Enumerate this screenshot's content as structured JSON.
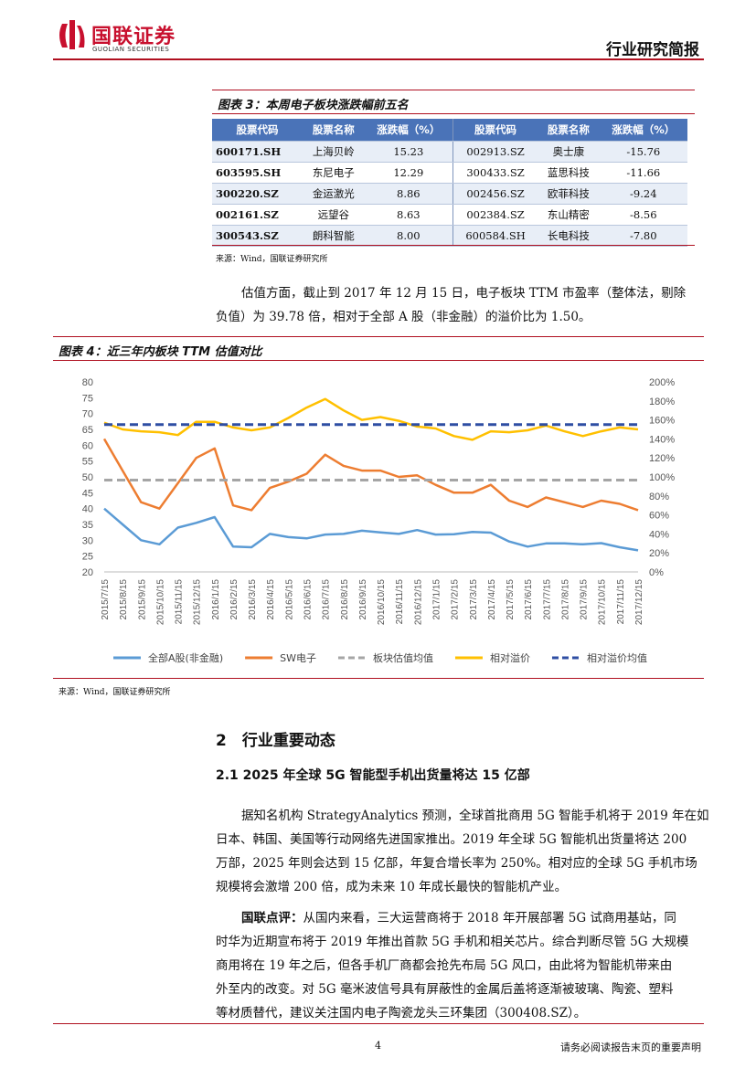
{
  "header": {
    "logo_cn": "国联证券",
    "logo_en": "GUOLIAN SECURITIES",
    "report_type": "行业研究简报"
  },
  "fig3": {
    "title": "图表 3：本周电子板块涨跌幅前五名",
    "headers": [
      "股票代码",
      "股票名称",
      "涨跌幅（%）",
      "股票代码",
      "股票名称",
      "涨跌幅（%）"
    ],
    "rows": [
      [
        "600171.SH",
        "上海贝岭",
        "15.23",
        "002913.SZ",
        "奥士康",
        "-15.76"
      ],
      [
        "603595.SH",
        "东尼电子",
        "12.29",
        "300433.SZ",
        "蓝思科技",
        "-11.66"
      ],
      [
        "300220.SZ",
        "金运激光",
        "8.86",
        "002456.SZ",
        "欧菲科技",
        "-9.24"
      ],
      [
        "002161.SZ",
        "远望谷",
        "8.63",
        "002384.SZ",
        "东山精密",
        "-8.56"
      ],
      [
        "300543.SZ",
        "朗科智能",
        "8.00",
        "600584.SH",
        "长电科技",
        "-7.80"
      ]
    ],
    "source": "来源：Wind，国联证券研究所"
  },
  "valuation_text": {
    "line1": "估值方面，截止到 2017 年 12 月 15 日，电子板块 TTM 市盈率（整体法，剔除",
    "line2": "负值）为 39.78 倍，相对于全部 A 股（非金融）的溢价比为 1.50。"
  },
  "fig4": {
    "title": "图表 4：近三年内板块 TTM 估值对比",
    "source": "来源：Wind，国联证券研究所"
  },
  "chart_data": {
    "type": "line",
    "x": [
      "2015/7/15",
      "2015/8/15",
      "2015/9/15",
      "2015/10/15",
      "2015/11/15",
      "2015/12/15",
      "2016/1/15",
      "2016/2/15",
      "2016/3/15",
      "2016/4/15",
      "2016/5/15",
      "2016/6/15",
      "2016/7/15",
      "2016/8/15",
      "2016/9/15",
      "2016/10/15",
      "2016/11/15",
      "2016/12/15",
      "2017/1/15",
      "2017/2/15",
      "2017/3/15",
      "2017/4/15",
      "2017/5/15",
      "2017/6/15",
      "2017/7/15",
      "2017/8/15",
      "2017/9/15",
      "2017/10/15",
      "2017/11/15",
      "2017/12/15"
    ],
    "left_axis": {
      "min": 20,
      "max": 80,
      "ticks": [
        "80",
        "75",
        "70",
        "65",
        "60",
        "55",
        "50",
        "45",
        "40",
        "35",
        "30",
        "25",
        "20"
      ]
    },
    "right_axis": {
      "min": 0,
      "max": 200,
      "ticks": [
        "200%",
        "180%",
        "160%",
        "140%",
        "120%",
        "100%",
        "80%",
        "60%",
        "40%",
        "20%",
        "0%"
      ]
    },
    "series": [
      {
        "name": "全部A股(非金融)",
        "axis": "left",
        "color": "#5b9bd5",
        "style": "solid",
        "values": [
          40,
          35,
          30,
          28.7,
          34,
          35.5,
          37.3,
          28,
          27.8,
          32,
          31,
          30.6,
          31.8,
          32,
          33,
          32.5,
          32,
          33.2,
          31.8,
          31.9,
          32.6,
          32.4,
          29.6,
          28,
          29,
          29,
          28.7,
          29.1,
          27.8,
          26.8
        ]
      },
      {
        "name": "SW电子",
        "axis": "left",
        "color": "#ed7d31",
        "style": "solid",
        "values": [
          62,
          52,
          42,
          40,
          48,
          56,
          59,
          41,
          39.5,
          46.5,
          48.5,
          51,
          57,
          53.5,
          52,
          52,
          50,
          50.5,
          47.5,
          45,
          45,
          47.5,
          42.5,
          40.5,
          43.5,
          42,
          40.5,
          42.5,
          41.5,
          39.5
        ]
      },
      {
        "name": "板块估值均值",
        "axis": "left",
        "color": "#a5a5a5",
        "style": "dashed",
        "values": [
          49,
          49,
          49,
          49,
          49,
          49,
          49,
          49,
          49,
          49,
          49,
          49,
          49,
          49,
          49,
          49,
          49,
          49,
          49,
          49,
          49,
          49,
          49,
          49,
          49,
          49,
          49,
          49,
          49,
          49
        ]
      },
      {
        "name": "相对溢价",
        "axis": "right",
        "color": "#ffc000",
        "style": "solid",
        "values": [
          157,
          150,
          148,
          147,
          144,
          158,
          158,
          152,
          149,
          152,
          162,
          173,
          182,
          170,
          160,
          163,
          159,
          153,
          151,
          143,
          139,
          148,
          147,
          149,
          154,
          148,
          143,
          148,
          152,
          150
        ]
      },
      {
        "name": "相对溢价均值",
        "axis": "right",
        "color": "#2f4ea3",
        "style": "dashed",
        "values": [
          155,
          155,
          155,
          155,
          155,
          155,
          155,
          155,
          155,
          155,
          155,
          155,
          155,
          155,
          155,
          155,
          155,
          155,
          155,
          155,
          155,
          155,
          155,
          155,
          155,
          155,
          155,
          155,
          155,
          155
        ]
      }
    ],
    "legend_position": "bottom",
    "grid": false
  },
  "section2": {
    "heading": "2　行业重要动态",
    "sub_heading": "2.1  2025 年全球 5G 智能型手机出货量将达 15 亿部",
    "para1": [
      "据知名机构 StrategyAnalytics 预测，全球首批商用 5G 智能手机将于 2019 年在如",
      "日本、韩国、美国等行动网络先进国家推出。2019 年全球 5G 智能机出货量将达 200",
      "万部，2025 年则会达到 15 亿部，年复合增长率为 250%。相对应的全球 5G 手机市场",
      "规模将会激增 200 倍，成为未来 10 年成长最快的智能机产业。"
    ],
    "comment_label": "国联点评：",
    "para2_first": "从国内来看，三大运营商将于 2018 年开展部署 5G 试商用基站，同",
    "para2": [
      "时华为近期宣布将于 2019 年推出首款 5G 手机和相关芯片。综合判断尽管 5G 大规模",
      "商用将在 19 年之后，但各手机厂商都会抢先布局 5G 风口，由此将为智能机带来由",
      "外至内的改变。对 5G 毫米波信号具有屏蔽性的金属后盖将逐渐被玻璃、陶瓷、塑料",
      "等材质替代，建议关注国内电子陶瓷龙头三环集团（300408.SZ）。"
    ]
  },
  "footer": {
    "page_number": "4",
    "disclaimer": "请务必阅读报告末页的重要声明"
  }
}
